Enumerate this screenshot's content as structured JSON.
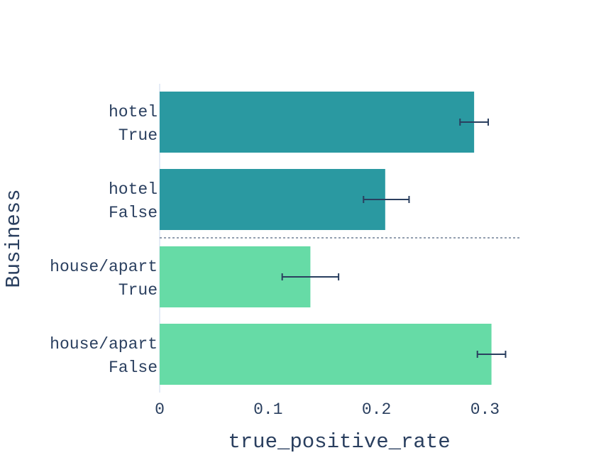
{
  "chart_data": {
    "type": "bar",
    "orientation": "horizontal",
    "xlabel": "true_positive_rate",
    "ylabel": "Business",
    "xlim": [
      0,
      0.33
    ],
    "x_ticks": [
      0,
      0.1,
      0.2,
      0.3
    ],
    "x_tick_labels": [
      "0",
      "0.1",
      "0.2",
      "0.3"
    ],
    "categories": [
      {
        "line1": "hotel",
        "line2": "True"
      },
      {
        "line1": "hotel",
        "line2": "False"
      },
      {
        "line1": "house/apart",
        "line2": "True"
      },
      {
        "line1": "house/apart",
        "line2": "False"
      }
    ],
    "values": [
      0.29,
      0.208,
      0.139,
      0.306
    ],
    "error_low": [
      0.277,
      0.188,
      0.113,
      0.293
    ],
    "error_high": [
      0.303,
      0.23,
      0.165,
      0.319
    ],
    "bar_colors": [
      "#2a99a1",
      "#2a99a1",
      "#66dba6",
      "#66dba6"
    ],
    "error_bar_color": "#2a3f5f",
    "separator": {
      "style": "dashed",
      "between": [
        "hotel",
        "house/apart"
      ]
    },
    "grid": false,
    "legend": "none"
  }
}
